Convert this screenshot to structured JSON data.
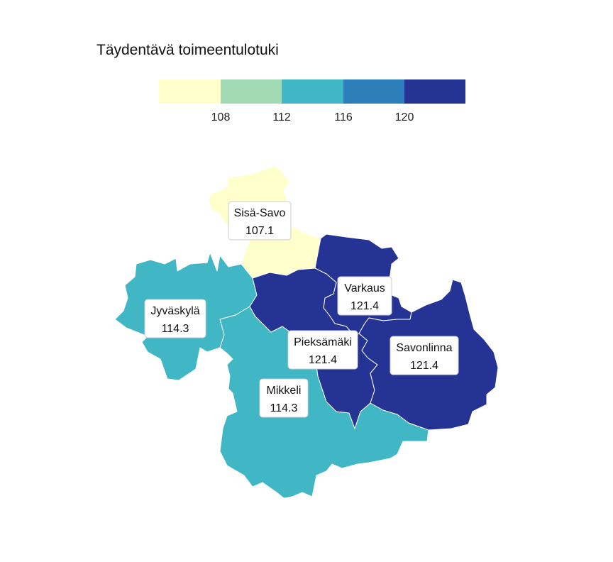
{
  "title": "Täydentävä toimeentulotuki",
  "legend": {
    "ticks": [
      "108",
      "112",
      "116",
      "120"
    ],
    "colors": [
      "#ffffcc",
      "#a1dab4",
      "#41b6c4",
      "#2c7fb8",
      "#253494"
    ]
  },
  "regions": [
    {
      "name": "Sisä-Savo",
      "value": "107.1",
      "color": "#ffffcc"
    },
    {
      "name": "Jyväskylä",
      "value": "114.3",
      "color": "#41b6c4"
    },
    {
      "name": "Mikkeli",
      "value": "114.3",
      "color": "#41b6c4"
    },
    {
      "name": "Varkaus",
      "value": "121.4",
      "color": "#253494"
    },
    {
      "name": "Pieksämäki",
      "value": "121.4",
      "color": "#253494"
    },
    {
      "name": "Savonlinna",
      "value": "121.4",
      "color": "#253494"
    }
  ]
}
